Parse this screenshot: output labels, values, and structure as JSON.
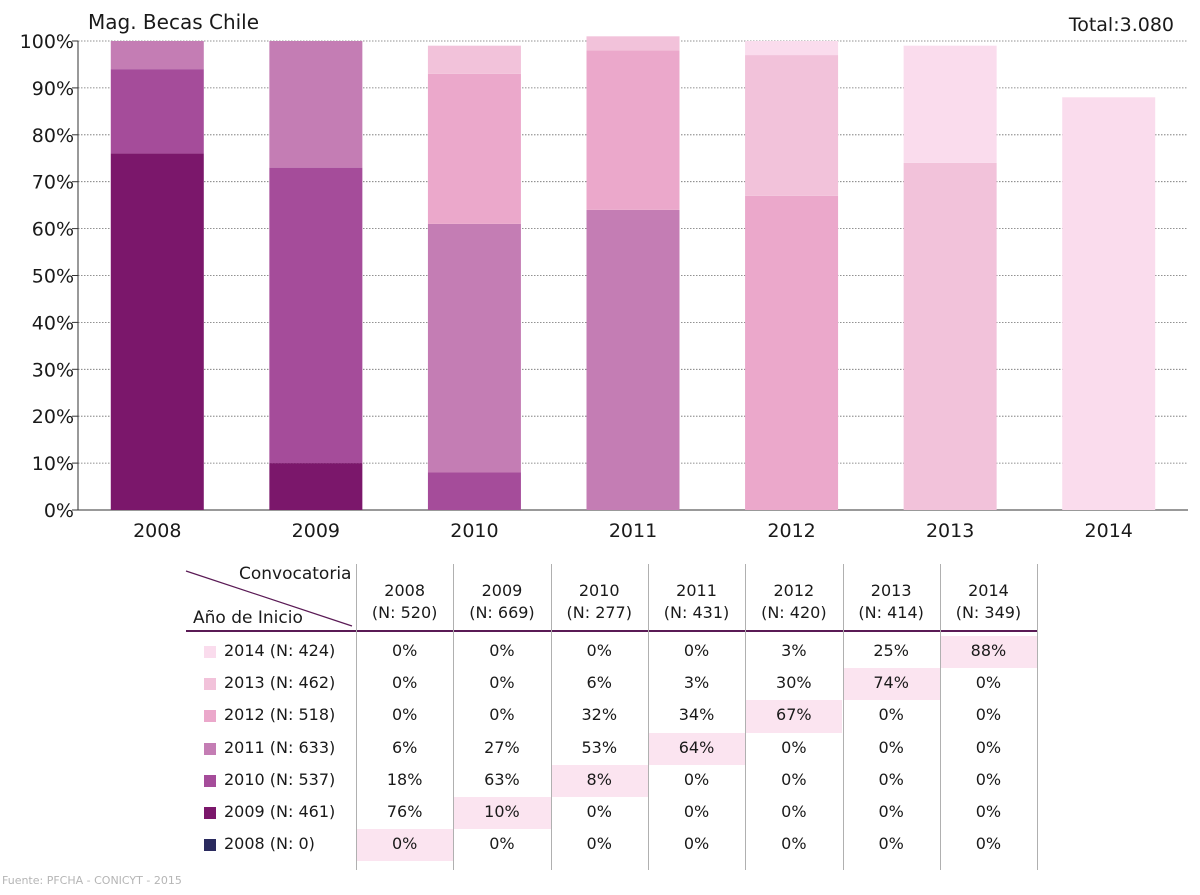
{
  "title": "Mag. Becas Chile",
  "total": "Total:3.080",
  "source": "Fuente: PFCHA - CONICYT - 2015",
  "chart_data": {
    "type": "bar",
    "stacked": true,
    "categories": [
      "2008",
      "2009",
      "2010",
      "2011",
      "2012",
      "2013",
      "2014"
    ],
    "ylim": [
      0,
      100
    ],
    "yticks": [
      "0%",
      "10%",
      "20%",
      "30%",
      "40%",
      "50%",
      "60%",
      "70%",
      "80%",
      "90%",
      "100%"
    ],
    "grid": true,
    "series": [
      {
        "name": "2008 (N: 0)",
        "color": "#2a2a5e",
        "values": [
          0,
          0,
          0,
          0,
          0,
          0,
          0
        ]
      },
      {
        "name": "2009 (N: 461)",
        "color": "#7b176b",
        "values": [
          76,
          10,
          0,
          0,
          0,
          0,
          0
        ]
      },
      {
        "name": "2010 (N: 537)",
        "color": "#a54c9a",
        "values": [
          18,
          63,
          8,
          0,
          0,
          0,
          0
        ]
      },
      {
        "name": "2011 (N: 633)",
        "color": "#c47db4",
        "values": [
          6,
          27,
          53,
          64,
          0,
          0,
          0
        ]
      },
      {
        "name": "2012 (N: 518)",
        "color": "#eba8cb",
        "values": [
          0,
          0,
          32,
          34,
          67,
          0,
          0
        ]
      },
      {
        "name": "2013 (N: 462)",
        "color": "#f2c2da",
        "values": [
          0,
          0,
          6,
          3,
          30,
          74,
          0
        ]
      },
      {
        "name": "2014 (N: 424)",
        "color": "#fadced",
        "values": [
          0,
          0,
          0,
          0,
          3,
          25,
          88
        ]
      }
    ]
  },
  "table": {
    "header_col": "Convocatoria",
    "header_row": "Año de Inicio",
    "columns": [
      {
        "year": "2008",
        "n": "(N: 520)"
      },
      {
        "year": "2009",
        "n": "(N: 669)"
      },
      {
        "year": "2010",
        "n": "(N: 277)"
      },
      {
        "year": "2011",
        "n": "(N: 431)"
      },
      {
        "year": "2012",
        "n": "(N: 420)"
      },
      {
        "year": "2013",
        "n": "(N: 414)"
      },
      {
        "year": "2014",
        "n": "(N: 349)"
      }
    ],
    "rows": [
      {
        "label": "2014 (N: 424)",
        "color": "#fadced",
        "values": [
          "0%",
          "0%",
          "0%",
          "0%",
          "3%",
          "25%",
          "88%"
        ],
        "highlight": 6
      },
      {
        "label": "2013 (N: 462)",
        "color": "#f2c2da",
        "values": [
          "0%",
          "0%",
          "6%",
          "3%",
          "30%",
          "74%",
          "0%"
        ],
        "highlight": 5
      },
      {
        "label": "2012 (N: 518)",
        "color": "#eba8cb",
        "values": [
          "0%",
          "0%",
          "32%",
          "34%",
          "67%",
          "0%",
          "0%"
        ],
        "highlight": 4
      },
      {
        "label": "2011 (N: 633)",
        "color": "#c47db4",
        "values": [
          "6%",
          "27%",
          "53%",
          "64%",
          "0%",
          "0%",
          "0%"
        ],
        "highlight": 3
      },
      {
        "label": "2010 (N: 537)",
        "color": "#a54c9a",
        "values": [
          "18%",
          "63%",
          "8%",
          "0%",
          "0%",
          "0%",
          "0%"
        ],
        "highlight": 2
      },
      {
        "label": "2009 (N: 461)",
        "color": "#7b176b",
        "values": [
          "76%",
          "10%",
          "0%",
          "0%",
          "0%",
          "0%",
          "0%"
        ],
        "highlight": 1
      },
      {
        "label": "2008 (N: 0)",
        "color": "#2a2a5e",
        "values": [
          "0%",
          "0%",
          "0%",
          "0%",
          "0%",
          "0%",
          "0%"
        ],
        "highlight": 0
      }
    ],
    "highlight_color": "#fbe4f0",
    "header_line_color": "#5a1a55"
  }
}
